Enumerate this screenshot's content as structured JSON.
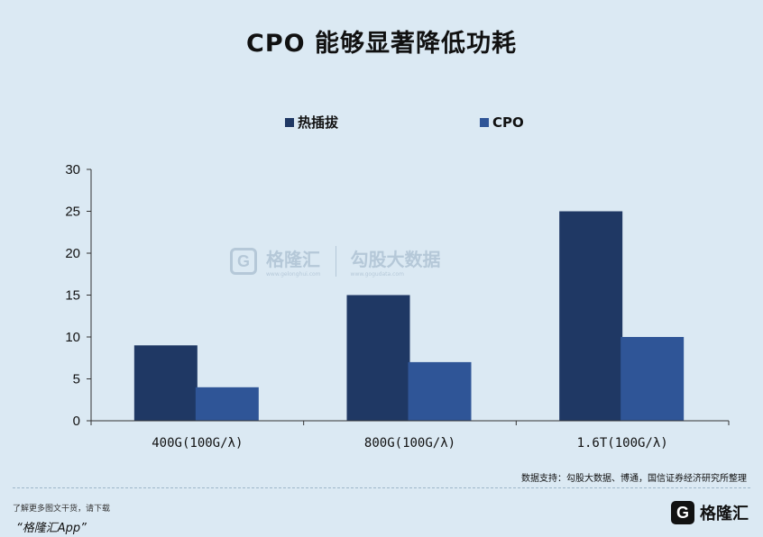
{
  "title": "CPO 能够显著降低功耗",
  "source_note": "数据支持：勾股大数据、博通，国信证券经济研究所整理",
  "footer": {
    "note": "了解更多图文干货，请下载",
    "app": "“格隆汇App”",
    "logo_mark": "G",
    "logo_name": "格隆汇"
  },
  "watermark": {
    "mark": "G",
    "name": "格隆汇",
    "sub1": "www.gelonghui.com",
    "name2": "勾股大数据",
    "sub2": "www.gogudata.com"
  },
  "colors": {
    "hot_plug": "#1f3864",
    "cpo": "#2f5597",
    "background": "#dbe9f3"
  },
  "chart_data": {
    "type": "bar",
    "categories": [
      "400G(100G/λ)",
      "800G(100G/λ)",
      "1.6T(100G/λ)"
    ],
    "series": [
      {
        "name": "热插拔",
        "values": [
          9,
          15,
          25
        ]
      },
      {
        "name": "CPO",
        "values": [
          4,
          7,
          10
        ]
      }
    ],
    "ylim": [
      0,
      30
    ],
    "yticks": [
      0,
      5,
      10,
      15,
      20,
      25,
      30
    ],
    "legend_position": "top-center",
    "grid": false
  }
}
